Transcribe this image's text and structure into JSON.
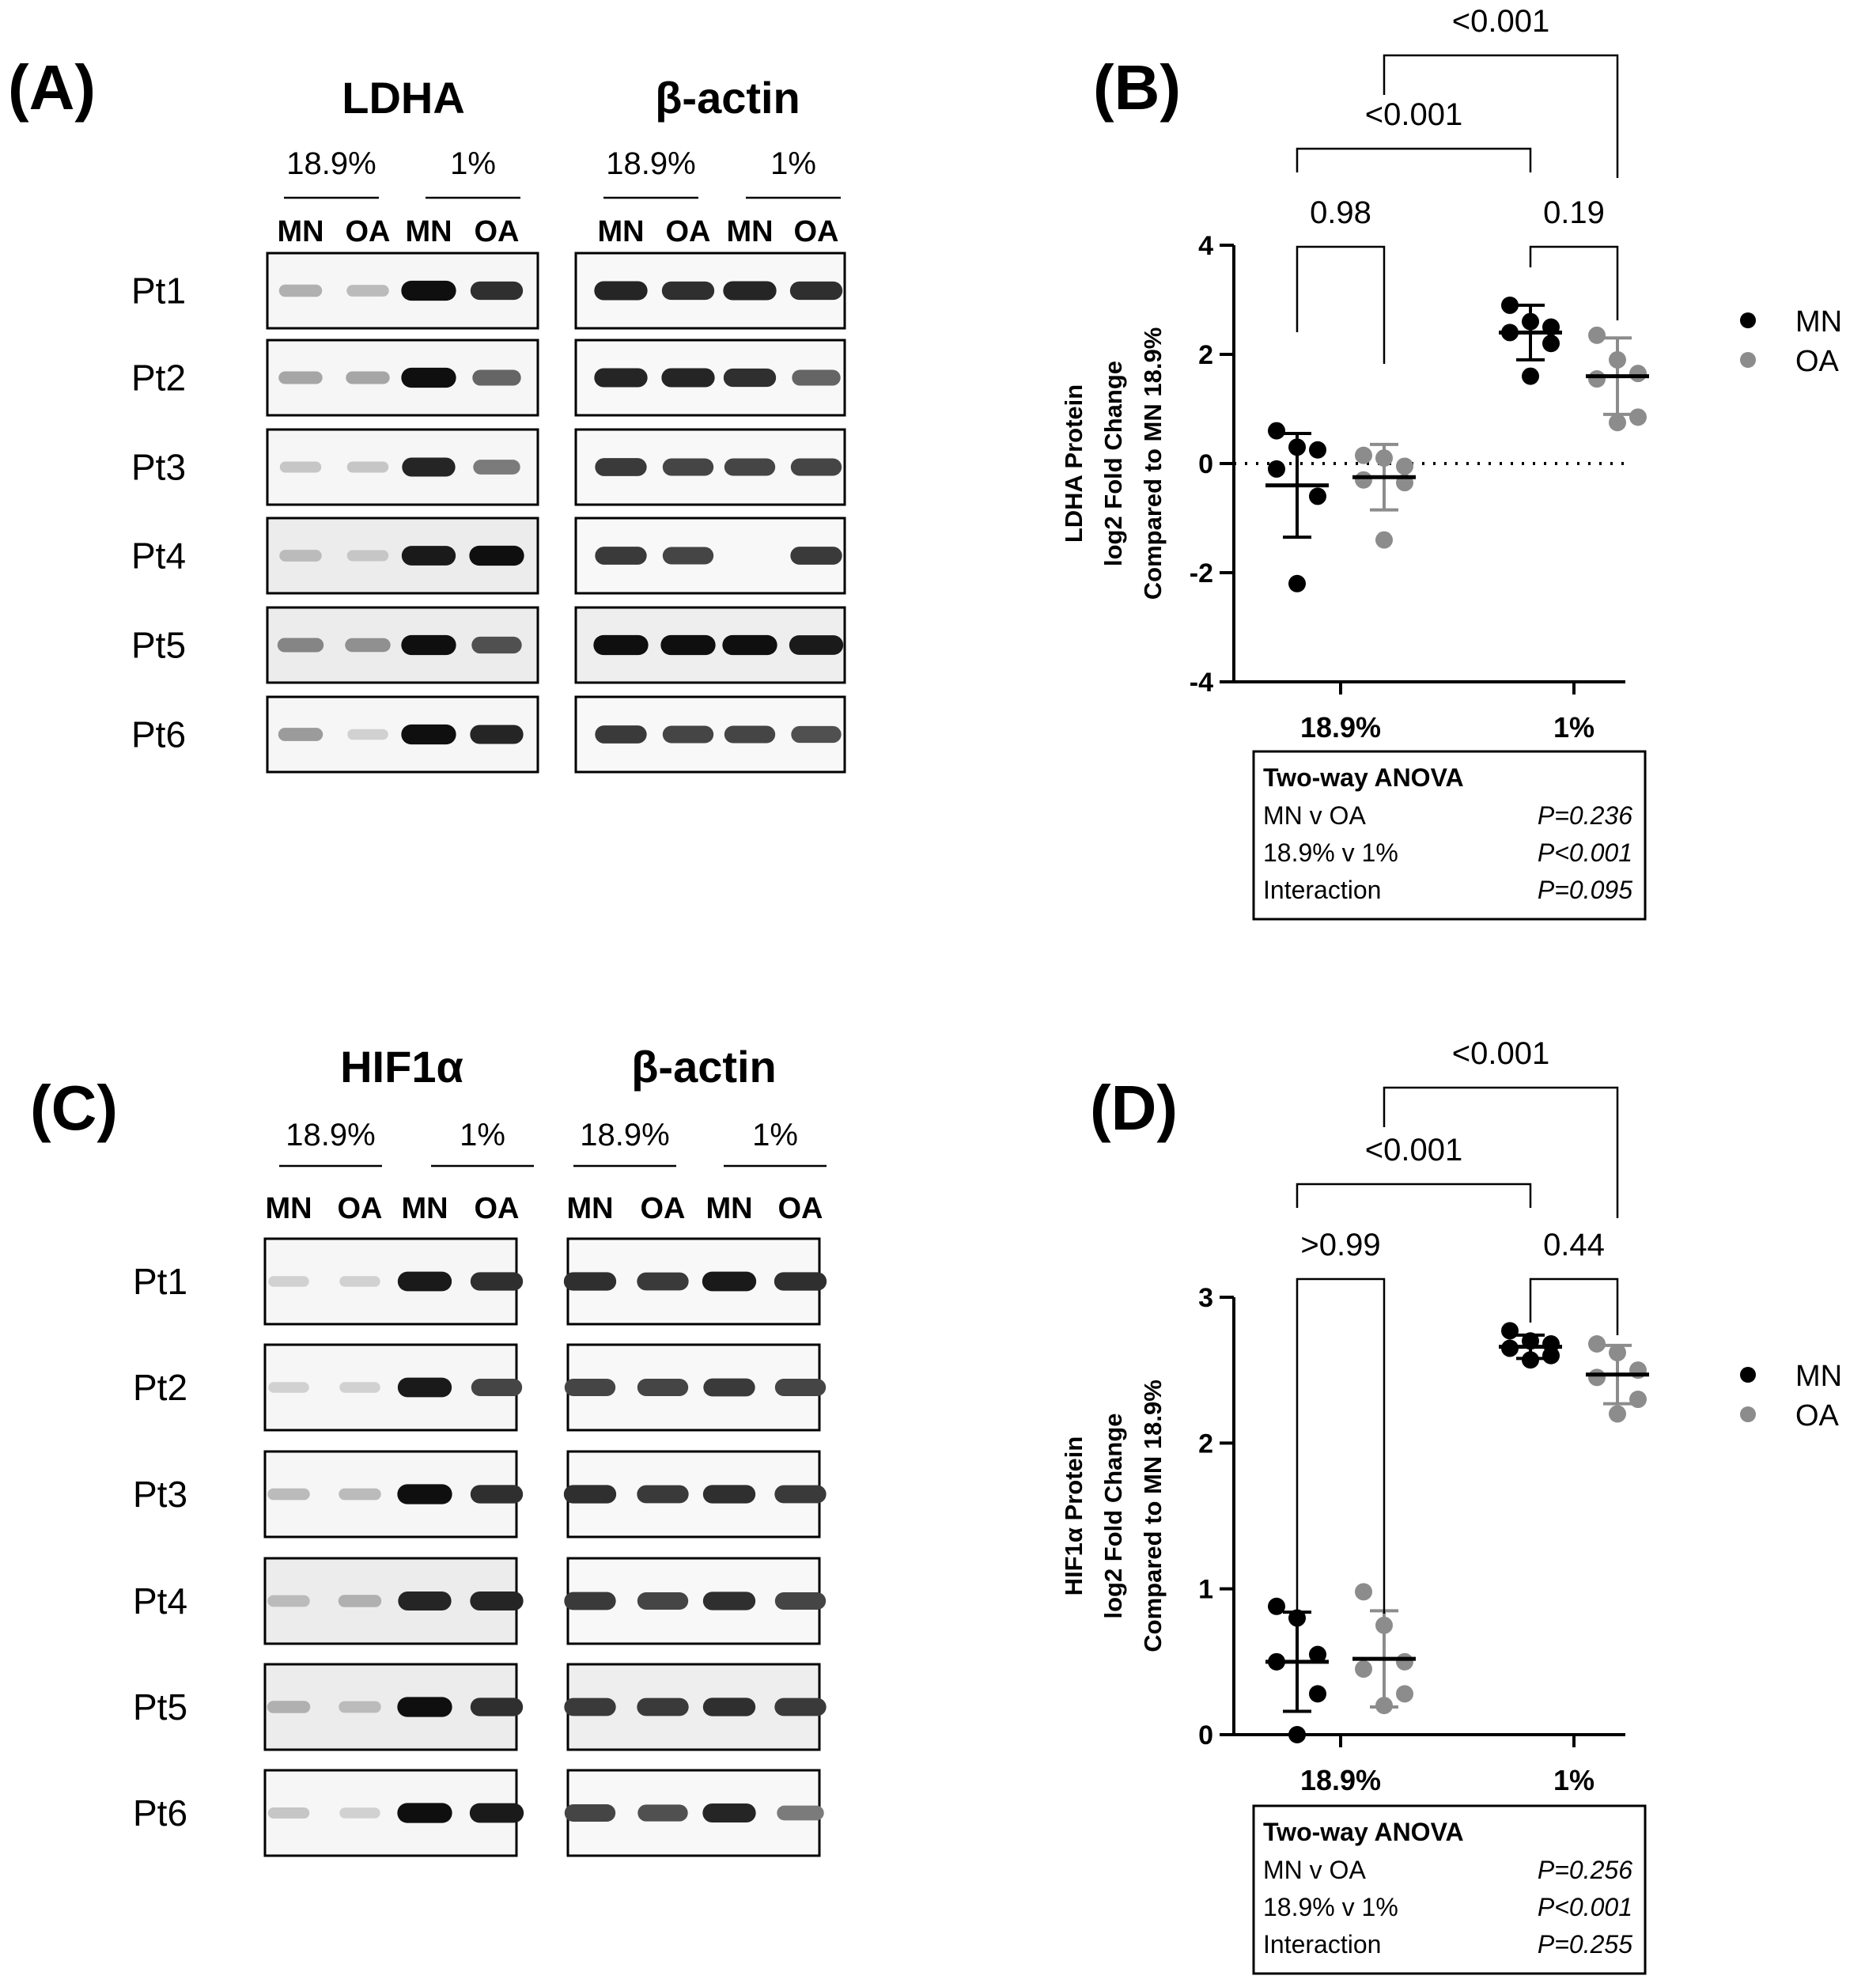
{
  "panels": {
    "A": "(A)",
    "B": "(B)",
    "C": "(C)",
    "D": "(D)"
  },
  "blots_top": {
    "left_protein": "LDHA",
    "right_protein": "β-actin",
    "conditions": [
      "18.9%",
      "1%"
    ],
    "lanes": [
      "MN",
      "OA",
      "MN",
      "OA"
    ],
    "patients": [
      "Pt1",
      "Pt2",
      "Pt3",
      "Pt4",
      "Pt5",
      "Pt6"
    ],
    "left_band_intensity": [
      [
        0.25,
        0.2,
        1.0,
        0.85
      ],
      [
        0.3,
        0.3,
        1.0,
        0.6
      ],
      [
        0.15,
        0.15,
        0.9,
        0.5
      ],
      [
        0.2,
        0.15,
        0.95,
        1.0
      ],
      [
        0.45,
        0.4,
        1.0,
        0.7
      ],
      [
        0.35,
        0.1,
        1.0,
        0.9
      ]
    ],
    "right_band_intensity": [
      [
        0.9,
        0.85,
        0.9,
        0.85
      ],
      [
        0.9,
        0.9,
        0.85,
        0.6
      ],
      [
        0.8,
        0.75,
        0.75,
        0.75
      ],
      [
        0.8,
        0.75,
        0.0,
        0.8
      ],
      [
        1.0,
        1.0,
        1.0,
        0.95
      ],
      [
        0.8,
        0.75,
        0.75,
        0.7
      ]
    ]
  },
  "blots_bottom": {
    "left_protein": "HIF1α",
    "right_protein": "β-actin",
    "conditions": [
      "18.9%",
      "1%"
    ],
    "lanes": [
      "MN",
      "OA",
      "MN",
      "OA"
    ],
    "patients": [
      "Pt1",
      "Pt2",
      "Pt3",
      "Pt4",
      "Pt5",
      "Pt6"
    ],
    "left_band_intensity": [
      [
        0.1,
        0.1,
        0.95,
        0.85
      ],
      [
        0.1,
        0.1,
        0.95,
        0.75
      ],
      [
        0.2,
        0.2,
        1.0,
        0.85
      ],
      [
        0.2,
        0.25,
        0.9,
        0.9
      ],
      [
        0.25,
        0.2,
        1.0,
        0.85
      ],
      [
        0.15,
        0.1,
        1.0,
        0.95
      ]
    ],
    "right_band_intensity": [
      [
        0.85,
        0.8,
        0.95,
        0.85
      ],
      [
        0.75,
        0.75,
        0.8,
        0.75
      ],
      [
        0.85,
        0.8,
        0.85,
        0.8
      ],
      [
        0.8,
        0.75,
        0.85,
        0.75
      ],
      [
        0.8,
        0.8,
        0.85,
        0.8
      ],
      [
        0.75,
        0.7,
        0.9,
        0.5
      ]
    ]
  },
  "legend": {
    "mn": "MN",
    "oa": "OA",
    "mn_color": "#000000",
    "oa_color": "#8c8c8c"
  },
  "chart_data": [
    {
      "panel": "B",
      "type": "scatter",
      "ylabel": [
        "LDHA Protein",
        "log2 Fold Change",
        "Compared to  MN 18.9%"
      ],
      "ylim": [
        -4,
        4
      ],
      "yticks": [
        -4,
        -2,
        0,
        2,
        4
      ],
      "categories": [
        "18.9%",
        "1%"
      ],
      "reference_line": 0,
      "series": [
        {
          "name": "MN",
          "color": "#000000",
          "points": [
            {
              "cat": 0,
              "values": [
                0.6,
                0.3,
                0.25,
                -0.1,
                -0.6,
                -2.2
              ]
            },
            {
              "cat": 1,
              "values": [
                2.9,
                2.6,
                2.5,
                2.4,
                2.2,
                1.6
              ]
            }
          ],
          "means": [
            -0.4,
            2.4
          ],
          "sd": [
            0.95,
            0.5
          ]
        },
        {
          "name": "OA",
          "color": "#8c8c8c",
          "points": [
            {
              "cat": 0,
              "values": [
                0.15,
                0.1,
                -0.05,
                -0.3,
                -0.35,
                -1.4
              ]
            },
            {
              "cat": 1,
              "values": [
                2.35,
                1.9,
                1.65,
                1.55,
                0.85,
                0.75
              ]
            }
          ],
          "means": [
            -0.25,
            1.6
          ],
          "sd": [
            0.6,
            0.7
          ]
        }
      ],
      "comparisons": [
        {
          "label": "0.98"
        },
        {
          "label": "0.19"
        },
        {
          "label": "<0.001"
        },
        {
          "label": "<0.001"
        }
      ],
      "anova": {
        "title": "Two-way ANOVA",
        "rows": [
          {
            "term": "MN v OA",
            "p": "P=0.236"
          },
          {
            "term": "18.9% v 1%",
            "p": "P<0.001"
          },
          {
            "term": "Interaction",
            "p": "P=0.095"
          }
        ]
      }
    },
    {
      "panel": "D",
      "type": "scatter",
      "ylabel": [
        "HIF1α  Protein",
        "log2 Fold Change",
        "Compared to  MN 18.9%"
      ],
      "ylim": [
        0,
        3
      ],
      "yticks": [
        0,
        1,
        2,
        3
      ],
      "categories": [
        "18.9%",
        "1%"
      ],
      "series": [
        {
          "name": "MN",
          "color": "#000000",
          "points": [
            {
              "cat": 0,
              "values": [
                0.88,
                0.8,
                0.55,
                0.5,
                0.28,
                0.0
              ]
            },
            {
              "cat": 1,
              "values": [
                2.77,
                2.7,
                2.68,
                2.65,
                2.6,
                2.57
              ]
            }
          ],
          "means": [
            0.5,
            2.66
          ],
          "sd": [
            0.34,
            0.08
          ]
        },
        {
          "name": "OA",
          "color": "#8c8c8c",
          "points": [
            {
              "cat": 0,
              "values": [
                0.98,
                0.75,
                0.5,
                0.45,
                0.28,
                0.2
              ]
            },
            {
              "cat": 1,
              "values": [
                2.68,
                2.62,
                2.5,
                2.45,
                2.3,
                2.2
              ]
            }
          ],
          "means": [
            0.52,
            2.47
          ],
          "sd": [
            0.33,
            0.2
          ]
        }
      ],
      "comparisons": [
        {
          "label": ">0.99"
        },
        {
          "label": "0.44"
        },
        {
          "label": "<0.001"
        },
        {
          "label": "<0.001"
        }
      ],
      "anova": {
        "title": "Two-way ANOVA",
        "rows": [
          {
            "term": "MN v OA",
            "p": "P=0.256"
          },
          {
            "term": "18.9% v 1%",
            "p": "P<0.001"
          },
          {
            "term": "Interaction",
            "p": "P=0.255"
          }
        ]
      }
    }
  ]
}
